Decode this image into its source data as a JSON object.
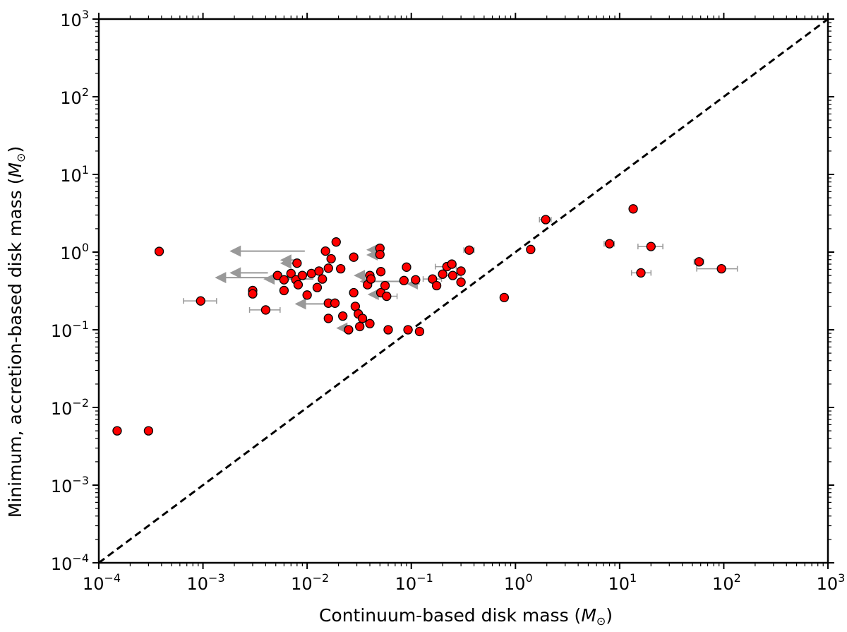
{
  "chart_data": {
    "type": "scatter",
    "title": "",
    "xlabel": "Continuum-based disk mass",
    "ylabel": "Minimum, accretion-based disk mass",
    "unit_label": "M",
    "unit_subscript": "⊙",
    "xscale": "log",
    "yscale": "log",
    "xlim": [
      0.0001,
      1000
    ],
    "ylim": [
      0.0001,
      1000
    ],
    "xticks": [
      {
        "base": "10",
        "exp": "−4"
      },
      {
        "base": "10",
        "exp": "−3"
      },
      {
        "base": "10",
        "exp": "−2"
      },
      {
        "base": "10",
        "exp": "−1"
      },
      {
        "base": "10",
        "exp": "0"
      },
      {
        "base": "10",
        "exp": "1"
      },
      {
        "base": "10",
        "exp": "2"
      },
      {
        "base": "10",
        "exp": "3"
      }
    ],
    "yticks": [
      {
        "base": "10",
        "exp": "−4"
      },
      {
        "base": "10",
        "exp": "−3"
      },
      {
        "base": "10",
        "exp": "−2"
      },
      {
        "base": "10",
        "exp": "−1"
      },
      {
        "base": "10",
        "exp": "0"
      },
      {
        "base": "10",
        "exp": "1"
      },
      {
        "base": "10",
        "exp": "2"
      },
      {
        "base": "10",
        "exp": "3"
      }
    ],
    "grid": false,
    "legend": "none",
    "marker_color": "#ff0000",
    "marker_edge": "#000000",
    "errorbar_color": "#999999",
    "reference_line": {
      "style": "dashed",
      "x": [
        0.0001,
        1000
      ],
      "y": [
        0.0001,
        1000
      ],
      "color": "#000000"
    },
    "points": [
      {
        "x": 0.00015,
        "y": 0.005
      },
      {
        "x": 0.0003,
        "y": 0.005
      },
      {
        "x": 0.00038,
        "y": 1.02,
        "xerr": [
          3e-05,
          3e-05
        ]
      },
      {
        "x": 0.00095,
        "y": 0.235,
        "xerr": [
          0.0003,
          0.0004
        ]
      },
      {
        "x": 0.003,
        "y": 0.32
      },
      {
        "x": 0.003,
        "y": 0.29
      },
      {
        "x": 0.004,
        "y": 0.18,
        "xerr": [
          0.0012,
          0.0015
        ]
      },
      {
        "x": 0.0052,
        "y": 0.5
      },
      {
        "x": 0.006,
        "y": 0.44
      },
      {
        "x": 0.006,
        "y": 0.32
      },
      {
        "x": 0.007,
        "y": 0.53
      },
      {
        "x": 0.0078,
        "y": 0.44
      },
      {
        "x": 0.008,
        "y": 0.72
      },
      {
        "x": 0.0082,
        "y": 0.38
      },
      {
        "x": 0.009,
        "y": 0.5
      },
      {
        "x": 0.01,
        "y": 0.28
      },
      {
        "x": 0.011,
        "y": 0.53
      },
      {
        "x": 0.0125,
        "y": 0.35
      },
      {
        "x": 0.013,
        "y": 0.57
      },
      {
        "x": 0.014,
        "y": 0.45
      },
      {
        "x": 0.015,
        "y": 1.03
      },
      {
        "x": 0.016,
        "y": 0.62
      },
      {
        "x": 0.016,
        "y": 0.22
      },
      {
        "x": 0.016,
        "y": 0.14
      },
      {
        "x": 0.017,
        "y": 0.82
      },
      {
        "x": 0.0185,
        "y": 0.22
      },
      {
        "x": 0.019,
        "y": 1.35
      },
      {
        "x": 0.021,
        "y": 0.61
      },
      {
        "x": 0.022,
        "y": 0.15
      },
      {
        "x": 0.025,
        "y": 0.1
      },
      {
        "x": 0.028,
        "y": 0.86
      },
      {
        "x": 0.028,
        "y": 0.3
      },
      {
        "x": 0.029,
        "y": 0.2
      },
      {
        "x": 0.031,
        "y": 0.16
      },
      {
        "x": 0.032,
        "y": 0.11
      },
      {
        "x": 0.034,
        "y": 0.14
      },
      {
        "x": 0.038,
        "y": 0.38
      },
      {
        "x": 0.04,
        "y": 0.5
      },
      {
        "x": 0.04,
        "y": 0.12
      },
      {
        "x": 0.041,
        "y": 0.45
      },
      {
        "x": 0.05,
        "y": 1.12
      },
      {
        "x": 0.05,
        "y": 0.93
      },
      {
        "x": 0.051,
        "y": 0.56
      },
      {
        "x": 0.051,
        "y": 0.3
      },
      {
        "x": 0.056,
        "y": 0.37
      },
      {
        "x": 0.058,
        "y": 0.27,
        "xerr": [
          0.012,
          0.015
        ]
      },
      {
        "x": 0.06,
        "y": 0.1
      },
      {
        "x": 0.085,
        "y": 0.43
      },
      {
        "x": 0.09,
        "y": 0.64
      },
      {
        "x": 0.093,
        "y": 0.1
      },
      {
        "x": 0.11,
        "y": 0.44
      },
      {
        "x": 0.12,
        "y": 0.095
      },
      {
        "x": 0.16,
        "y": 0.45,
        "xerr": [
          0.03,
          0.035
        ]
      },
      {
        "x": 0.175,
        "y": 0.37
      },
      {
        "x": 0.2,
        "y": 0.52
      },
      {
        "x": 0.22,
        "y": 0.65,
        "xerr": [
          0.05,
          0.05
        ]
      },
      {
        "x": 0.245,
        "y": 0.7
      },
      {
        "x": 0.25,
        "y": 0.5,
        "xerr": [
          0.05,
          0.05
        ]
      },
      {
        "x": 0.3,
        "y": 0.57
      },
      {
        "x": 0.3,
        "y": 0.41
      },
      {
        "x": 0.36,
        "y": 1.06,
        "xerr": [
          0.04,
          0.04
        ]
      },
      {
        "x": 0.78,
        "y": 0.26
      },
      {
        "x": 1.4,
        "y": 1.08
      },
      {
        "x": 1.95,
        "y": 2.62,
        "xerr": [
          0.25,
          0.25
        ]
      },
      {
        "x": 8.0,
        "y": 1.28,
        "xerr": [
          0.9,
          0.9
        ]
      },
      {
        "x": 13.5,
        "y": 3.6
      },
      {
        "x": 16,
        "y": 0.54,
        "xerr": [
          3,
          4
        ]
      },
      {
        "x": 20,
        "y": 1.18,
        "xerr": [
          5,
          6
        ]
      },
      {
        "x": 58,
        "y": 0.75,
        "xerr": [
          6,
          6
        ]
      },
      {
        "x": 95,
        "y": 0.61,
        "xerr": [
          40,
          40
        ]
      }
    ],
    "upper_limits": [
      {
        "x": 0.0095,
        "y": 1.03,
        "x_arrow": 0.0018
      },
      {
        "x": 0.0075,
        "y": 0.79,
        "x_arrow": 0.0055
      },
      {
        "x": 0.0042,
        "y": 0.54,
        "x_arrow": 0.0018
      },
      {
        "x": 0.007,
        "y": 0.47,
        "x_arrow": 0.0013
      },
      {
        "x": 0.0115,
        "y": 0.45,
        "x_arrow": 0.0038
      },
      {
        "x": 0.0085,
        "y": 0.72,
        "x_arrow": 0.0055
      },
      {
        "x": 0.016,
        "y": 0.215,
        "x_arrow": 0.0076
      },
      {
        "x": 0.026,
        "y": 0.105,
        "x_arrow": 0.019
      },
      {
        "x": 0.052,
        "y": 1.07,
        "x_arrow": 0.037
      },
      {
        "x": 0.052,
        "y": 0.92,
        "x_arrow": 0.037
      },
      {
        "x": 0.044,
        "y": 0.5,
        "x_arrow": 0.028
      },
      {
        "x": 0.09,
        "y": 0.42,
        "x_arrow": 0.032
      },
      {
        "x": 0.05,
        "y": 0.285,
        "x_arrow": 0.038
      },
      {
        "x": 0.12,
        "y": 0.39,
        "x_arrow": 0.09
      }
    ]
  }
}
